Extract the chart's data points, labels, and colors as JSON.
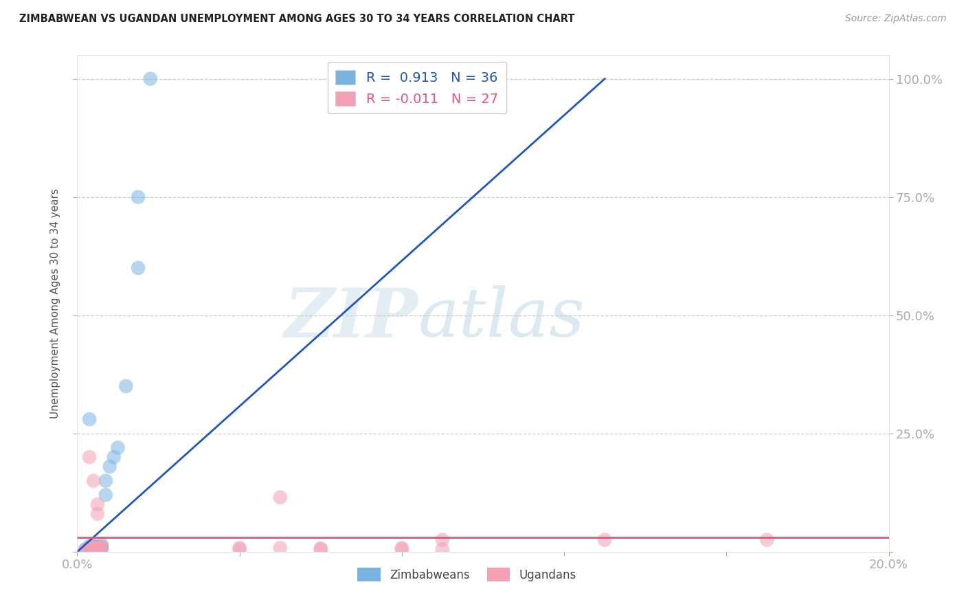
{
  "title": "ZIMBABWEAN VS UGANDAN UNEMPLOYMENT AMONG AGES 30 TO 34 YEARS CORRELATION CHART",
  "source": "Source: ZipAtlas.com",
  "ylabel": "Unemployment Among Ages 30 to 34 years",
  "xlim": [
    0,
    0.2
  ],
  "ylim": [
    0,
    1.05
  ],
  "xticks": [
    0.0,
    0.04,
    0.08,
    0.12,
    0.16,
    0.2
  ],
  "xticklabels": [
    "0.0%",
    "",
    "",
    "",
    "",
    "20.0%"
  ],
  "yticks_left": [],
  "yticks_right": [
    0.0,
    0.25,
    0.5,
    0.75,
    1.0
  ],
  "yticklabels_right": [
    "",
    "25.0%",
    "50.0%",
    "75.0%",
    "100.0%"
  ],
  "grid_yticks": [
    0.25,
    0.5,
    0.75,
    1.0
  ],
  "watermark_zip": "ZIP",
  "watermark_atlas": "atlas",
  "blue_color": "#7ab3e0",
  "pink_color": "#f4a0b5",
  "blue_line_color": "#2255bb",
  "pink_line_color": "#e0557a",
  "R_blue": "0.913",
  "N_blue": "36",
  "R_pink": "-0.011",
  "N_pink": "27",
  "blue_scatter_x": [
    0.002,
    0.003,
    0.004,
    0.005,
    0.003,
    0.004,
    0.005,
    0.006,
    0.004,
    0.005,
    0.003,
    0.004,
    0.005,
    0.006,
    0.004,
    0.005,
    0.006,
    0.003,
    0.004,
    0.005,
    0.005,
    0.003,
    0.004,
    0.005,
    0.003,
    0.005,
    0.006,
    0.007,
    0.007,
    0.008,
    0.009,
    0.01,
    0.012,
    0.015,
    0.015,
    0.018
  ],
  "blue_scatter_y": [
    0.005,
    0.008,
    0.006,
    0.01,
    0.012,
    0.005,
    0.008,
    0.015,
    0.01,
    0.007,
    0.009,
    0.011,
    0.006,
    0.008,
    0.013,
    0.005,
    0.01,
    0.007,
    0.008,
    0.006,
    0.009,
    0.007,
    0.005,
    0.008,
    0.28,
    0.01,
    0.008,
    0.12,
    0.15,
    0.18,
    0.2,
    0.22,
    0.35,
    0.6,
    0.75,
    1.0
  ],
  "pink_scatter_x": [
    0.002,
    0.003,
    0.004,
    0.005,
    0.003,
    0.004,
    0.005,
    0.006,
    0.004,
    0.005,
    0.003,
    0.004,
    0.005,
    0.006,
    0.004,
    0.04,
    0.05,
    0.06,
    0.08,
    0.09,
    0.04,
    0.06,
    0.08,
    0.13,
    0.17,
    0.05,
    0.09
  ],
  "pink_scatter_y": [
    0.005,
    0.2,
    0.15,
    0.08,
    0.005,
    0.008,
    0.1,
    0.01,
    0.005,
    0.008,
    0.007,
    0.005,
    0.007,
    0.01,
    0.01,
    0.008,
    0.115,
    0.005,
    0.008,
    0.005,
    0.005,
    0.007,
    0.005,
    0.025,
    0.025,
    0.008,
    0.025
  ],
  "blue_line_x": [
    0.0,
    0.13
  ],
  "blue_line_y": [
    0.0,
    1.0
  ],
  "pink_line_y_const": 0.03
}
